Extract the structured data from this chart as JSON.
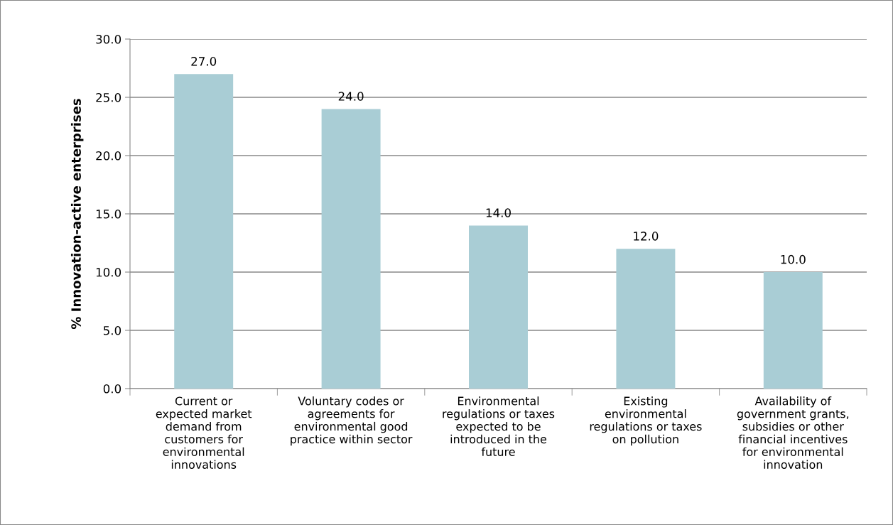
{
  "chart_data": {
    "type": "bar",
    "ylabel": "% Innovation-active enterprises",
    "categories": [
      "Current or\nexpected market\ndemand from\ncustomers for\nenvironmental\ninnovations",
      "Voluntary codes or\nagreements for\nenvironmental good\npractice within sector",
      "Environmental\nregulations or taxes\nexpected to be\nintroduced in the\nfuture",
      "Existing\nenvironmental\nregulations or taxes\non pollution",
      "Availability of\ngovernment grants,\nsubsidies or other\nfinancial incentives\nfor environmental\ninnovation"
    ],
    "values": [
      27.0,
      24.0,
      14.0,
      12.0,
      10.0
    ],
    "value_labels": [
      "27.0",
      "24.0",
      "14.0",
      "12.0",
      "10.0"
    ],
    "color": "#a9cdd5",
    "ylim": [
      0,
      30
    ],
    "yticks": [
      {
        "value": 0,
        "label": "0.0"
      },
      {
        "value": 5,
        "label": "5.0"
      },
      {
        "value": 10,
        "label": "10.0"
      },
      {
        "value": 15,
        "label": "15.0"
      },
      {
        "value": 20,
        "label": "20.0"
      },
      {
        "value": 25,
        "label": "25.0"
      },
      {
        "value": 30,
        "label": "30.0"
      }
    ],
    "grid": "y"
  }
}
